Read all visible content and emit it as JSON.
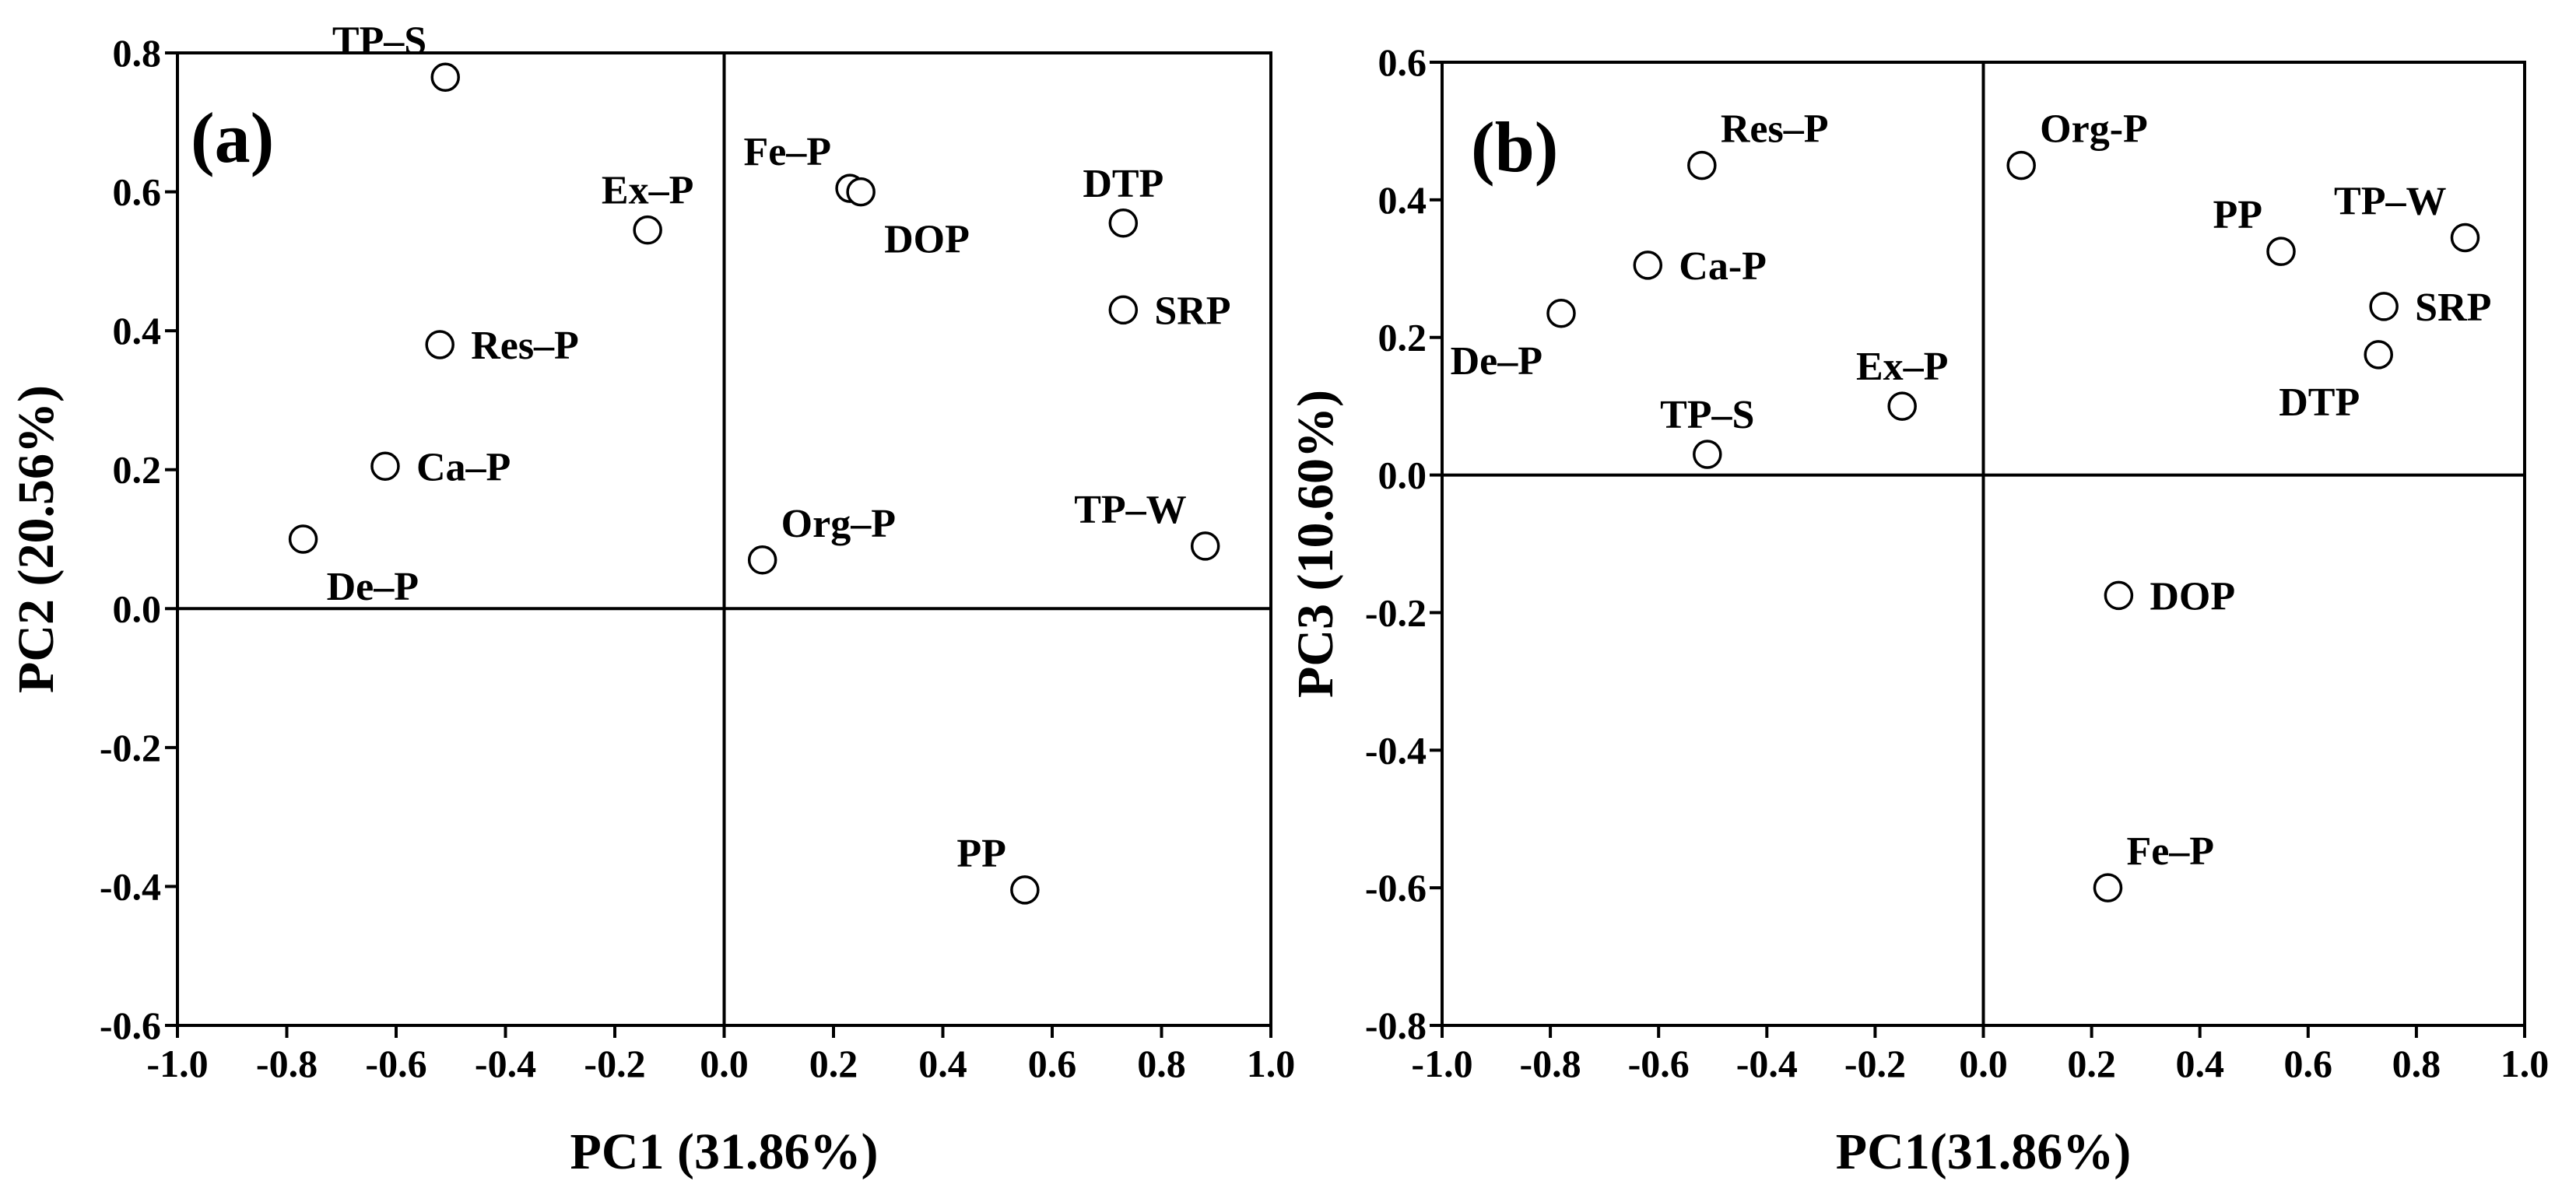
{
  "chart_data": [
    {
      "type": "scatter",
      "panel_label": "(a)",
      "xlabel": "PC1 (31.86%)",
      "ylabel": "PC2 (20.56%)",
      "xlim": [
        -1.0,
        1.0
      ],
      "ylim": [
        -0.6,
        0.8
      ],
      "xticks": [
        "-1.0",
        "-0.8",
        "-0.6",
        "-0.4",
        "-0.2",
        "0.0",
        "0.2",
        "0.4",
        "0.6",
        "0.8",
        "1.0"
      ],
      "yticks": [
        "-0.6",
        "-0.4",
        "-0.2",
        "0.0",
        "0.2",
        "0.4",
        "0.6",
        "0.8"
      ],
      "grid": false,
      "reference_lines": {
        "x": 0.0,
        "y": 0.0
      },
      "marker": "open-circle",
      "points": [
        {
          "label": "TP–S",
          "x": -0.51,
          "y": 0.765,
          "label_side": "left-up"
        },
        {
          "label": "Ex–P",
          "x": -0.14,
          "y": 0.545,
          "label_side": "up"
        },
        {
          "label": "Res–P",
          "x": -0.52,
          "y": 0.38,
          "label_side": "right"
        },
        {
          "label": "Ca–P",
          "x": -0.62,
          "y": 0.205,
          "label_side": "right"
        },
        {
          "label": "De–P",
          "x": -0.77,
          "y": 0.1,
          "label_side": "right-down"
        },
        {
          "label": "Fe–P",
          "x": 0.23,
          "y": 0.605,
          "label_side": "left-up"
        },
        {
          "label": "DOP",
          "x": 0.25,
          "y": 0.6,
          "label_side": "right-down"
        },
        {
          "label": "DTP",
          "x": 0.73,
          "y": 0.555,
          "label_side": "up"
        },
        {
          "label": "SRP",
          "x": 0.73,
          "y": 0.43,
          "label_side": "right"
        },
        {
          "label": "TP–W",
          "x": 0.88,
          "y": 0.09,
          "label_side": "left-up"
        },
        {
          "label": "Org–P",
          "x": 0.07,
          "y": 0.07,
          "label_side": "right-up"
        },
        {
          "label": "PP",
          "x": 0.55,
          "y": -0.405,
          "label_side": "left-up"
        }
      ]
    },
    {
      "type": "scatter",
      "panel_label": "(b)",
      "xlabel": "PC1(31.86%)",
      "ylabel": "PC3 (10.60%)",
      "xlim": [
        -1.0,
        1.0
      ],
      "ylim": [
        -0.8,
        0.6
      ],
      "xticks": [
        "-1.0",
        "-0.8",
        "-0.6",
        "-0.4",
        "-0.2",
        "0.0",
        "0.2",
        "0.4",
        "0.6",
        "0.8",
        "1.0"
      ],
      "yticks": [
        "-0.8",
        "-0.6",
        "-0.4",
        "-0.2",
        "0.0",
        "0.2",
        "0.4",
        "0.6"
      ],
      "grid": false,
      "reference_lines": {
        "x": 0.0,
        "y": 0.0
      },
      "marker": "open-circle",
      "points": [
        {
          "label": "Res–P",
          "x": -0.52,
          "y": 0.45,
          "label_side": "right-up"
        },
        {
          "label": "Org-P",
          "x": 0.07,
          "y": 0.45,
          "label_side": "right-up"
        },
        {
          "label": "Ca-P",
          "x": -0.62,
          "y": 0.305,
          "label_side": "right"
        },
        {
          "label": "De–P",
          "x": -0.78,
          "y": 0.235,
          "label_side": "left-down"
        },
        {
          "label": "Ex–P",
          "x": -0.15,
          "y": 0.1,
          "label_side": "up"
        },
        {
          "label": "TP–S",
          "x": -0.51,
          "y": 0.03,
          "label_side": "up"
        },
        {
          "label": "PP",
          "x": 0.55,
          "y": 0.325,
          "label_side": "left-up"
        },
        {
          "label": "TP–W",
          "x": 0.89,
          "y": 0.345,
          "label_side": "left-up"
        },
        {
          "label": "SRP",
          "x": 0.74,
          "y": 0.245,
          "label_side": "right"
        },
        {
          "label": "DTP",
          "x": 0.73,
          "y": 0.175,
          "label_side": "left-down"
        },
        {
          "label": "DOP",
          "x": 0.25,
          "y": -0.175,
          "label_side": "right"
        },
        {
          "label": "Fe–P",
          "x": 0.23,
          "y": -0.6,
          "label_side": "right-up"
        }
      ]
    }
  ]
}
